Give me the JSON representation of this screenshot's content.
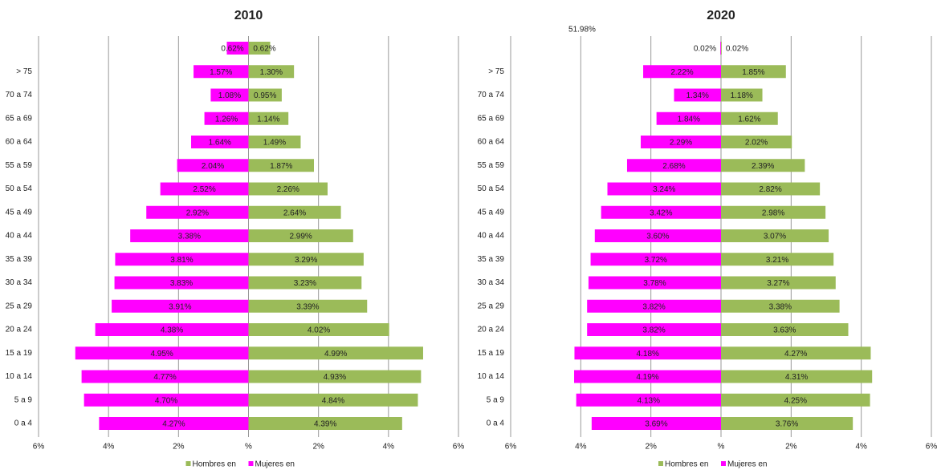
{
  "chart_data": [
    {
      "type": "bar",
      "orientation": "horizontal",
      "title": "2010",
      "categories": [
        null,
        "> 75",
        "70 a 74",
        "65 a 69",
        "60 a 64",
        "55 a 59",
        "50 a 54",
        "45 a 49",
        "40 a 44",
        "35 a 39",
        "30 a 34",
        "25 a 29",
        "20 a 24",
        "15 a 19",
        "10 a 14",
        "5 a 9",
        "0 a 4"
      ],
      "series": [
        {
          "name": "Hombres en",
          "color": "#9bbb59",
          "values": [
            0.62,
            1.3,
            0.95,
            1.14,
            1.49,
            1.87,
            2.26,
            2.64,
            2.99,
            3.29,
            3.23,
            3.39,
            4.02,
            4.99,
            4.93,
            4.84,
            4.39
          ],
          "value_labels": [
            "0.62%",
            "1.30%",
            "0.95%",
            "1.14%",
            "1.49%",
            "1.87%",
            "2.26%",
            "2.64%",
            "2.99%",
            "3.29%",
            "3.23%",
            "3.39%",
            "4.02%",
            "4.99%",
            "4.93%",
            "4.84%",
            "4.39%"
          ]
        },
        {
          "name": "Mujeres en",
          "color": "#ff00ff",
          "values": [
            -0.62,
            -1.57,
            -1.08,
            -1.26,
            -1.64,
            -2.04,
            -2.52,
            -2.92,
            -3.38,
            -3.81,
            -3.83,
            -3.91,
            -4.38,
            -4.95,
            -4.77,
            -4.7,
            -4.27
          ],
          "value_labels": [
            "0.62%",
            "1.57%",
            "1.08%",
            "1.26%",
            "1.64%",
            "2.04%",
            "2.52%",
            "2.92%",
            "3.38%",
            "3.81%",
            "3.83%",
            "3.91%",
            "4.38%",
            "4.95%",
            "4.77%",
            "4.70%",
            "4.27%"
          ]
        }
      ],
      "xlim": [
        -6,
        6
      ],
      "xticks": [
        {
          "value": -6,
          "label": "6%"
        },
        {
          "value": -4,
          "label": "4%"
        },
        {
          "value": -2,
          "label": "2%"
        },
        {
          "value": 0,
          "label": "%"
        },
        {
          "value": 2,
          "label": "2%"
        },
        {
          "value": 4,
          "label": "4%"
        },
        {
          "value": 6,
          "label": "6%"
        }
      ],
      "grid": true,
      "legend": "bottom"
    },
    {
      "type": "bar",
      "orientation": "horizontal",
      "title": "2020",
      "annotation": "51.98%",
      "categories": [
        null,
        "> 75",
        "70 a 74",
        "65 a 69",
        "60 a 64",
        "55 a 59",
        "50 a 54",
        "45 a 49",
        "40 a 44",
        "35 a 39",
        "30 a 34",
        "25 a 29",
        "20 a 24",
        "15 a 19",
        "10 a 14",
        "5 a 9",
        "0 a 4"
      ],
      "series": [
        {
          "name": "Hombres en",
          "color": "#9bbb59",
          "values": [
            0.02,
            1.85,
            1.18,
            1.62,
            2.02,
            2.39,
            2.82,
            2.98,
            3.07,
            3.21,
            3.27,
            3.38,
            3.63,
            4.27,
            4.31,
            4.25,
            3.76
          ],
          "value_labels": [
            "0.02%",
            "1.85%",
            "1.18%",
            "1.62%",
            "2.02%",
            "2.39%",
            "2.82%",
            "2.98%",
            "3.07%",
            "3.21%",
            "3.27%",
            "3.38%",
            "3.63%",
            "4.27%",
            "4.31%",
            "4.25%",
            "3.76%"
          ]
        },
        {
          "name": "Mujeres en",
          "color": "#ff00ff",
          "values": [
            -0.02,
            -2.22,
            -1.34,
            -1.84,
            -2.29,
            -2.68,
            -3.24,
            -3.42,
            -3.6,
            -3.72,
            -3.78,
            -3.82,
            -3.82,
            -4.18,
            -4.19,
            -4.13,
            -3.69
          ],
          "value_labels": [
            "0.02%",
            "2.22%",
            "1.34%",
            "1.84%",
            "2.29%",
            "2.68%",
            "3.24%",
            "3.42%",
            "3.60%",
            "3.72%",
            "3.78%",
            "3.82%",
            "3.82%",
            "4.18%",
            "4.19%",
            "4.13%",
            "3.69%"
          ]
        }
      ],
      "xlim": [
        -6,
        6
      ],
      "xticks": [
        {
          "value": -6,
          "label": "6%"
        },
        {
          "value": -4,
          "label": "4%"
        },
        {
          "value": -2,
          "label": "2%"
        },
        {
          "value": 0,
          "label": "%"
        },
        {
          "value": 2,
          "label": "2%"
        },
        {
          "value": 4,
          "label": "4%"
        },
        {
          "value": 6,
          "label": "6%"
        }
      ],
      "grid": true,
      "legend": "bottom"
    }
  ]
}
